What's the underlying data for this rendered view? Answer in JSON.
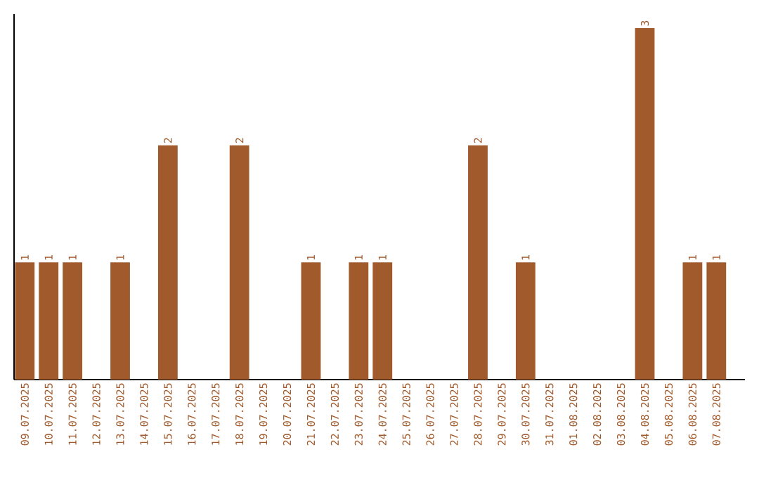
{
  "chart_data": {
    "type": "bar",
    "categories": [
      "09.07.2025",
      "10.07.2025",
      "11.07.2025",
      "12.07.2025",
      "13.07.2025",
      "14.07.2025",
      "15.07.2025",
      "16.07.2025",
      "17.07.2025",
      "18.07.2025",
      "19.07.2025",
      "20.07.2025",
      "21.07.2025",
      "22.07.2025",
      "23.07.2025",
      "24.07.2025",
      "25.07.2025",
      "26.07.2025",
      "27.07.2025",
      "28.07.2025",
      "29.07.2025",
      "30.07.2025",
      "31.07.2025",
      "01.08.2025",
      "02.08.2025",
      "03.08.2025",
      "04.08.2025",
      "05.08.2025",
      "06.08.2025",
      "07.08.2025"
    ],
    "values": [
      1,
      1,
      1,
      0,
      1,
      0,
      2,
      0,
      0,
      2,
      0,
      0,
      1,
      0,
      1,
      1,
      0,
      0,
      0,
      2,
      0,
      1,
      0,
      0,
      0,
      0,
      3,
      0,
      1,
      1
    ],
    "value_labels": [
      "1",
      "1",
      "1",
      null,
      "1",
      null,
      "2",
      null,
      null,
      "2",
      null,
      null,
      "1",
      null,
      "1",
      "1",
      null,
      null,
      null,
      "2",
      null,
      "1",
      null,
      null,
      null,
      null,
      "3",
      null,
      "1",
      "1"
    ],
    "color": "#a05a2c",
    "ylim": [
      0,
      3.12
    ],
    "tick_labels": "x"
  }
}
